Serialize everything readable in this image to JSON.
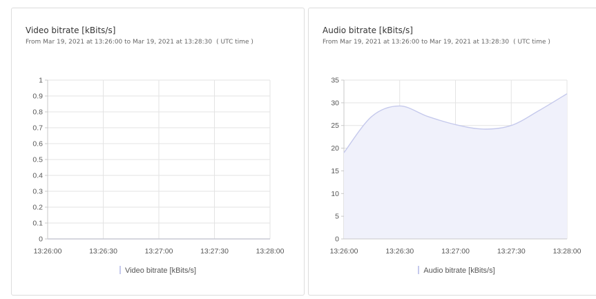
{
  "colors": {
    "card_border": "#dcdcdc",
    "grid": "#e3e3e3",
    "axis": "#c8c8c8",
    "tick_text": "#555555",
    "series_line": "#c5c9ec",
    "series_fill": "#f0f1fb"
  },
  "charts": [
    {
      "title": "Video bitrate [kBits/s]",
      "range_text": "From Mar 19, 2021 at 13:26:00 to Mar 19, 2021 at 13:28:30",
      "timezone_text": "( UTC time )",
      "legend_label": "Video bitrate [kBits/s]"
    },
    {
      "title": "Audio bitrate [kBits/s]",
      "range_text": "From Mar 19, 2021 at 13:26:00 to Mar 19, 2021 at 13:28:30",
      "timezone_text": "( UTC time )",
      "legend_label": "Audio bitrate [kBits/s]"
    }
  ],
  "chart_data": [
    {
      "type": "area",
      "title": "Video bitrate [kBits/s]",
      "x": [
        "13:26:00",
        "13:26:30",
        "13:27:00",
        "13:27:30",
        "13:28:00"
      ],
      "x_ticks": [
        "13:26:00",
        "13:26:30",
        "13:27:00",
        "13:27:30",
        "13:28:00"
      ],
      "y_ticks": [
        "0",
        "0.1",
        "0.2",
        "0.3",
        "0.4",
        "0.5",
        "0.6",
        "0.7",
        "0.8",
        "0.9",
        "1"
      ],
      "ylim": [
        0,
        1
      ],
      "series": [
        {
          "name": "Video bitrate [kBits/s]",
          "values": [
            0,
            0,
            0,
            0,
            0
          ]
        }
      ],
      "grid": true,
      "legend": "bottom-center"
    },
    {
      "type": "area",
      "title": "Audio bitrate [kBits/s]",
      "x": [
        "13:26:00",
        "13:26:15",
        "13:26:30",
        "13:26:45",
        "13:27:00",
        "13:27:15",
        "13:27:30",
        "13:27:45",
        "13:28:00"
      ],
      "x_ticks": [
        "13:26:00",
        "13:26:30",
        "13:27:00",
        "13:27:30",
        "13:28:00"
      ],
      "y_ticks": [
        "0",
        "5",
        "10",
        "15",
        "20",
        "25",
        "30",
        "35"
      ],
      "ylim": [
        0,
        35
      ],
      "series": [
        {
          "name": "Audio bitrate [kBits/s]",
          "values": [
            19,
            27,
            29.3,
            27,
            25.2,
            24.2,
            25,
            28.3,
            32
          ]
        }
      ],
      "grid": true,
      "legend": "bottom-center"
    }
  ]
}
